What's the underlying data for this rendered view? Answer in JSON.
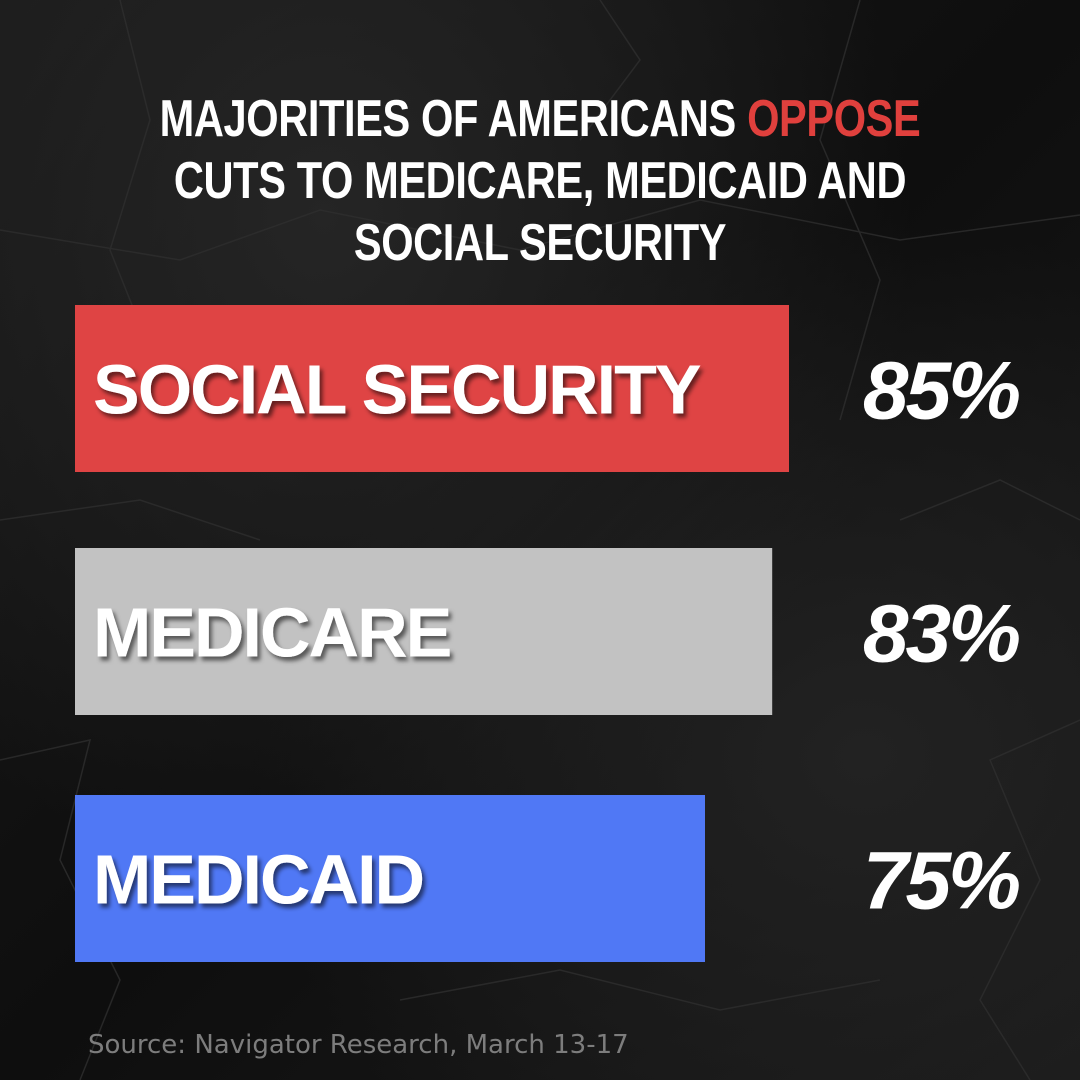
{
  "title": {
    "part1": "MAJORITIES OF AMERICANS ",
    "highlight": "OPPOSE",
    "part2": " CUTS TO MEDICARE, MEDICAID AND SOCIAL SECURITY"
  },
  "colors": {
    "highlight": "#e0403d",
    "background": "#141414"
  },
  "chart_data": {
    "type": "bar",
    "orientation": "horizontal",
    "title": "MAJORITIES OF AMERICANS OPPOSE CUTS TO MEDICARE, MEDICAID AND SOCIAL SECURITY",
    "xlabel": "",
    "ylabel": "",
    "categories": [
      "SOCIAL SECURITY",
      "MEDICARE",
      "MEDICAID"
    ],
    "values": [
      85,
      83,
      75
    ],
    "value_labels": [
      "85%",
      "83%",
      "75%"
    ],
    "colors": [
      "#df4444",
      "#c2c2c2",
      "#5078f5"
    ]
  },
  "source": "Source: Navigator Research, March 13-17"
}
